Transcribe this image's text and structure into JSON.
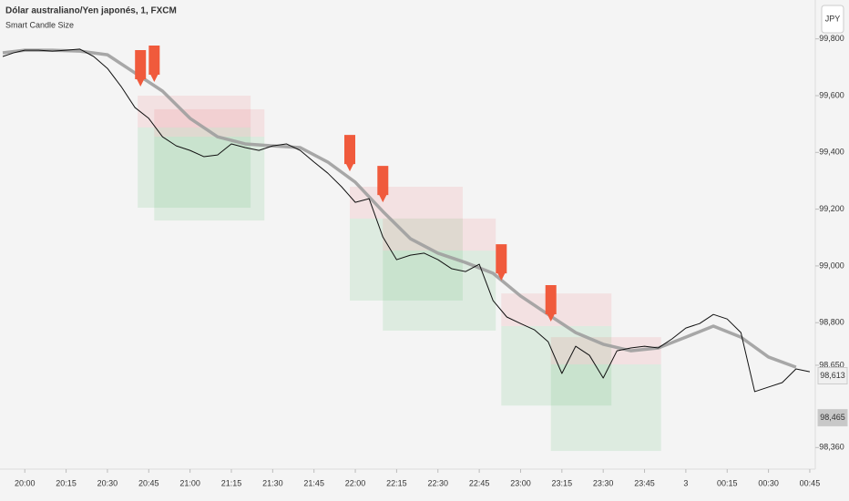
{
  "chart_data": {
    "type": "line",
    "title": "Dólar australiano/Yen japonés, 1, FXCM",
    "subtitle": "Smart Candle Size",
    "currency": "JPY",
    "xlim": [
      -9,
      287
    ],
    "ylim": [
      98.284,
      99.937
    ],
    "xticks": [
      {
        "value": 0,
        "label": "20:00"
      },
      {
        "value": 15,
        "label": "20:15"
      },
      {
        "value": 30,
        "label": "20:30"
      },
      {
        "value": 45,
        "label": "20:45"
      },
      {
        "value": 60,
        "label": "21:00"
      },
      {
        "value": 75,
        "label": "21:15"
      },
      {
        "value": 90,
        "label": "21:30"
      },
      {
        "value": 105,
        "label": "21:45"
      },
      {
        "value": 120,
        "label": "22:00"
      },
      {
        "value": 135,
        "label": "22:15"
      },
      {
        "value": 150,
        "label": "22:30"
      },
      {
        "value": 165,
        "label": "22:45"
      },
      {
        "value": 180,
        "label": "23:00"
      },
      {
        "value": 195,
        "label": "23:15"
      },
      {
        "value": 210,
        "label": "23:30"
      },
      {
        "value": 225,
        "label": "23:45"
      },
      {
        "value": 240,
        "label": "3"
      },
      {
        "value": 255,
        "label": "00:15"
      },
      {
        "value": 270,
        "label": "00:30"
      },
      {
        "value": 285,
        "label": "00:45"
      }
    ],
    "yticks": [
      {
        "value": 99.8,
        "label": "99,800"
      },
      {
        "value": 99.6,
        "label": "99,600"
      },
      {
        "value": 99.4,
        "label": "99,400"
      },
      {
        "value": 99.2,
        "label": "99,200"
      },
      {
        "value": 99.0,
        "label": "99,000"
      },
      {
        "value": 98.8,
        "label": "98,800"
      },
      {
        "value": 98.65,
        "label": "98,650"
      },
      {
        "value": 98.36,
        "label": "98,360"
      }
    ],
    "series": [
      {
        "color": "#111111",
        "x": [
          -8,
          -4,
          0,
          5,
          10,
          15,
          20,
          25,
          30,
          35,
          40,
          45,
          50,
          55,
          60,
          65,
          70,
          75,
          80,
          85,
          90,
          95,
          100,
          105,
          110,
          115,
          120,
          125,
          130,
          135,
          140,
          145,
          150,
          155,
          160,
          165,
          170,
          175,
          180,
          185,
          190,
          195,
          200,
          205,
          210,
          215,
          220,
          225,
          230,
          235,
          240,
          245,
          250,
          255,
          260,
          265,
          270,
          275,
          280,
          285
        ],
        "values": [
          99.738,
          99.751,
          99.76,
          99.76,
          99.757,
          99.76,
          99.764,
          99.738,
          99.696,
          99.632,
          99.558,
          99.52,
          99.455,
          99.423,
          99.407,
          99.385,
          99.391,
          99.43,
          99.417,
          99.407,
          99.423,
          99.43,
          99.407,
          99.366,
          99.327,
          99.279,
          99.224,
          99.237,
          99.102,
          99.022,
          99.038,
          99.045,
          99.022,
          98.99,
          98.98,
          99.006,
          98.878,
          98.82,
          98.797,
          98.775,
          98.733,
          98.621,
          98.717,
          98.685,
          98.605,
          98.701,
          98.711,
          98.717,
          98.711,
          98.743,
          98.781,
          98.797,
          98.829,
          98.813,
          98.765,
          98.557,
          98.573,
          98.589,
          98.637,
          98.627
        ]
      },
      {
        "color": "#9e9e9e",
        "x": [
          -8,
          0,
          10,
          20,
          30,
          40,
          50,
          60,
          70,
          80,
          90,
          100,
          110,
          120,
          130,
          140,
          150,
          160,
          170,
          180,
          190,
          200,
          210,
          220,
          230,
          240,
          250,
          260,
          270,
          280
        ],
        "values": [
          99.751,
          99.76,
          99.76,
          99.757,
          99.744,
          99.68,
          99.616,
          99.52,
          99.455,
          99.43,
          99.423,
          99.417,
          99.366,
          99.295,
          99.192,
          99.096,
          99.045,
          99.012,
          98.974,
          98.894,
          98.829,
          98.765,
          98.724,
          98.701,
          98.711,
          98.749,
          98.788,
          98.749,
          98.679,
          98.643
        ]
      }
    ],
    "zones": [
      {
        "x_start": 41,
        "x_end": 82,
        "stop": 99.6,
        "entry": 99.488,
        "target": 99.205
      },
      {
        "x_start": 47,
        "x_end": 87,
        "stop": 99.552,
        "entry": 99.455,
        "target": 99.16
      },
      {
        "x_start": 118,
        "x_end": 159,
        "stop": 99.279,
        "entry": 99.167,
        "target": 98.878
      },
      {
        "x_start": 130,
        "x_end": 171,
        "stop": 99.167,
        "entry": 99.054,
        "target": 98.772
      },
      {
        "x_start": 173,
        "x_end": 213,
        "stop": 98.903,
        "entry": 98.788,
        "target": 98.508
      },
      {
        "x_start": 191,
        "x_end": 231,
        "stop": 98.749,
        "entry": 98.653,
        "target": 98.348
      }
    ],
    "signals": [
      {
        "x": 42,
        "price": 99.632
      },
      {
        "x": 47,
        "price": 99.648
      },
      {
        "x": 118,
        "price": 99.333
      },
      {
        "x": 130,
        "price": 99.224
      },
      {
        "x": 173,
        "price": 98.948
      },
      {
        "x": 191,
        "price": 98.804
      }
    ],
    "price_labels": [
      {
        "value": 98.613,
        "label": "98,613",
        "color": "#f0f0f0"
      },
      {
        "value": 98.465,
        "label": "98,465",
        "color": "#c8c8c8"
      }
    ],
    "signal_color": "#f05a3c"
  }
}
